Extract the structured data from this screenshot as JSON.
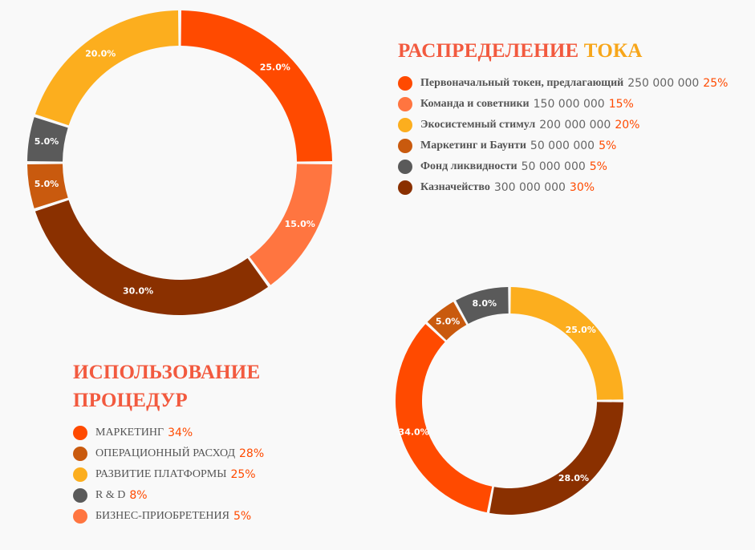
{
  "colors": {
    "heading_red": "#f25a3f",
    "heading_orange": "#f7a61a",
    "percent": "#ff4a00"
  },
  "token_distribution": {
    "title_part1": "РАСПРЕДЕЛЕНИЕ",
    "title_part2": "ТОКА"
  },
  "procedure_usage": {
    "title_line1": "ИСПОЛЬЗОВАНИЕ",
    "title_line2": "ПРОЦЕДУР"
  },
  "chart_data": [
    {
      "type": "pie",
      "donut": true,
      "slices": [
        {
          "label": "Первоначальный токен, предлагающий",
          "amount": "250 000 000",
          "value": 25.0,
          "legend_pct": "25%",
          "color": "#ff4a00"
        },
        {
          "label": "Команда и советники",
          "amount": "150 000 000",
          "value": 15.0,
          "legend_pct": "15%",
          "color": "#ff7540"
        },
        {
          "label": "Экосистемный стимул",
          "amount": "200 000 000",
          "value": 20.0,
          "legend_pct": "20%",
          "color": "#fcae1e"
        },
        {
          "label": "Маркетинг и Баунти",
          "amount": "50 000 000",
          "value": 5.0,
          "legend_pct": "5%",
          "color": "#c95a0e"
        },
        {
          "label": "Фонд ликвидности",
          "amount": "50 000 000",
          "value": 5.0,
          "legend_pct": "5%",
          "color": "#5a5a5a"
        },
        {
          "label": "Казначейство",
          "amount": "300 000 000",
          "value": 30.0,
          "legend_pct": "30%",
          "color": "#8a3000"
        }
      ],
      "chart_order": [
        0,
        1,
        5,
        3,
        4,
        2
      ],
      "slice_labels": [
        "25.0%",
        "15.0%",
        "30.0%",
        "5.0%",
        "5.0%",
        "20.0%"
      ]
    },
    {
      "type": "pie",
      "donut": true,
      "slices": [
        {
          "label": "МАРКЕТИНГ",
          "value": 34.0,
          "legend_pct": "34%",
          "color": "#ff4a00"
        },
        {
          "label": "ОПЕРАЦИОННЫЙ РАСХОД",
          "value": 28.0,
          "legend_pct": "28%",
          "color": "#c95a0e"
        },
        {
          "label": "РАЗВИТИЕ ПЛАТФОРМЫ",
          "value": 25.0,
          "legend_pct": "25%",
          "color": "#fcae1e"
        },
        {
          "label": "R & D",
          "value": 8.0,
          "legend_pct": "8%",
          "color": "#5a5a5a"
        },
        {
          "label": "БИЗНЕС-ПРИОБРЕТЕНИЯ",
          "value": 5.0,
          "legend_pct": "5%",
          "color": "#ff7540"
        }
      ],
      "chart_slices": [
        {
          "label": "РАЗВИТИЕ ПЛАТФОРМЫ",
          "value": 25.0,
          "color": "#fcae1e",
          "text": "25.0%"
        },
        {
          "label": "ОПЕРАЦИОННЫЙ РАСХОД",
          "value": 28.0,
          "color": "#8a3000",
          "text": "28.0%"
        },
        {
          "label": "МАРКЕТИНГ",
          "value": 34.0,
          "color": "#ff4a00",
          "text": "34.0%"
        },
        {
          "label": "БИЗНЕС-ПРИОБРЕТЕНИЯ",
          "value": 5.0,
          "color": "#c95a0e",
          "text": "5.0%"
        },
        {
          "label": "R & D",
          "value": 8.0,
          "color": "#5a5a5a",
          "text": "8.0%"
        }
      ]
    }
  ]
}
